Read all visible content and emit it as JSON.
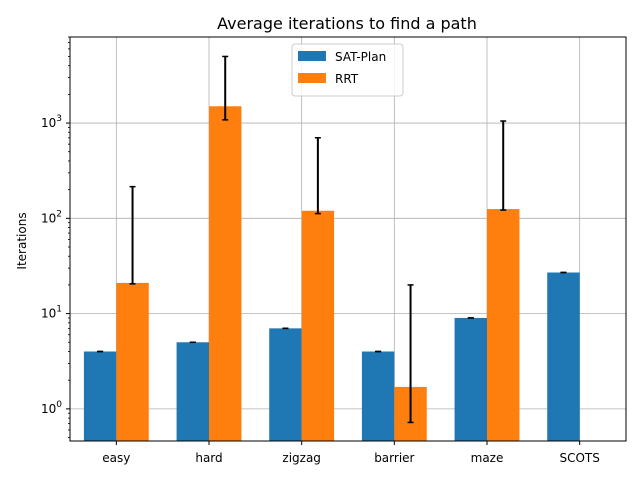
{
  "chart_data": {
    "type": "bar",
    "title": "Average iterations to find a path",
    "xlabel": "",
    "ylabel": "Iterations",
    "yscale": "log",
    "ylim": [
      0.46,
      8000
    ],
    "y_ticks": [
      {
        "value": 1,
        "base": "10",
        "exp": "0"
      },
      {
        "value": 10,
        "base": "10",
        "exp": "1"
      },
      {
        "value": 100,
        "base": "10",
        "exp": "2"
      },
      {
        "value": 1000,
        "base": "10",
        "exp": "3"
      }
    ],
    "grid": true,
    "legend_position": "upper-center",
    "categories": [
      "easy",
      "hard",
      "zigzag",
      "barrier",
      "maze",
      "SCOTS"
    ],
    "series": [
      {
        "name": "SAT-Plan",
        "color": "#1f77b4",
        "values": [
          4,
          5,
          7,
          4,
          9,
          27
        ],
        "error_low": [
          4,
          5,
          7,
          4,
          9,
          27
        ],
        "error_high": [
          4,
          5,
          7,
          4,
          9,
          27
        ]
      },
      {
        "name": "RRT",
        "color": "#ff7f0e",
        "values": [
          21,
          1500,
          120,
          1.7,
          125,
          null
        ],
        "error_low": [
          20.5,
          1080,
          112,
          0.72,
          122,
          null
        ],
        "error_high": [
          215,
          5000,
          700,
          20,
          1050,
          null
        ]
      }
    ]
  }
}
